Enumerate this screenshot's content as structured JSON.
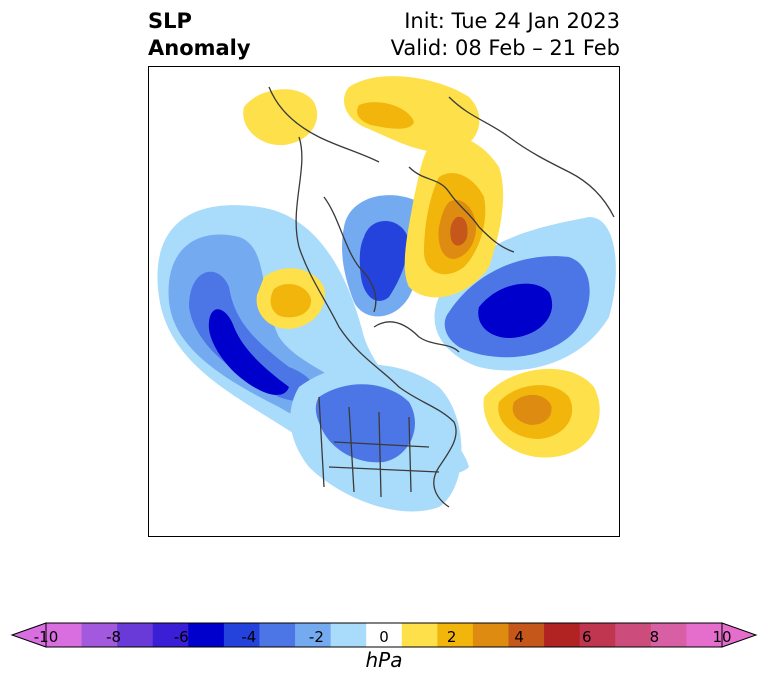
{
  "title": {
    "left_line1": "SLP",
    "left_line2": "Anomaly",
    "right_line1": "Init: Tue 24 Jan 2023",
    "right_line2": "Valid: 08 Feb – 21 Feb"
  },
  "colorbar": {
    "units": "hPa",
    "ticks": [
      "-10",
      "-8",
      "-6",
      "-4",
      "-2",
      "0",
      "2",
      "4",
      "6",
      "8",
      "10"
    ],
    "levels": [
      -10,
      -9,
      -8,
      -7,
      -6,
      -5,
      -4,
      -3,
      -2,
      -1,
      1,
      2,
      3,
      4,
      5,
      6,
      7,
      8,
      9,
      10
    ],
    "colors": [
      "#d86ee0",
      "#a259dd",
      "#6a3ad9",
      "#3a1fd6",
      "#0000cc",
      "#2443dc",
      "#4c76e6",
      "#74aaf0",
      "#a9dbfb",
      "#ffffff",
      "#fee04a",
      "#f1b50b",
      "#de8b12",
      "#c6571b",
      "#b12222",
      "#c03550",
      "#cc4c7b",
      "#d85fa4",
      "#e56ecd"
    ],
    "extend": "both"
  },
  "map": {
    "projection": "north-polar-stereographic",
    "field": "sea level pressure anomaly",
    "features": [
      {
        "name": "pacific-low",
        "sign": "negative",
        "peak": -6
      },
      {
        "name": "greenland-low",
        "sign": "negative",
        "peak": -5
      },
      {
        "name": "siberia-low",
        "sign": "negative",
        "peak": -7
      },
      {
        "name": "us-low",
        "sign": "negative",
        "peak": -4
      },
      {
        "name": "siberia-high",
        "sign": "positive",
        "peak": 5
      },
      {
        "name": "atlantic-high",
        "sign": "positive",
        "peak": 4
      },
      {
        "name": "scandinavia-high",
        "sign": "positive",
        "peak": 2
      },
      {
        "name": "alaska-high",
        "sign": "positive",
        "peak": 2
      }
    ]
  }
}
